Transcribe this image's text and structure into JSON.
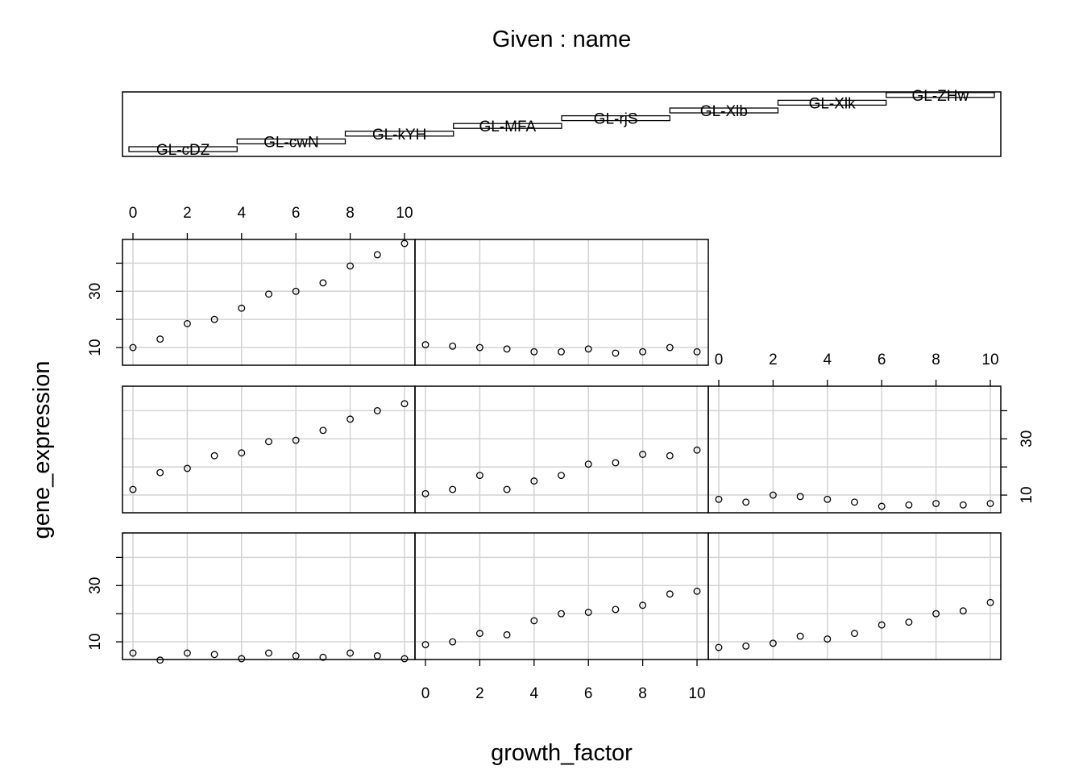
{
  "chart_data": {
    "type": "scatter",
    "title": "Given : name",
    "xlabel": "growth_factor",
    "ylabel": "gene_expression",
    "x_ticks": [
      0,
      2,
      4,
      6,
      8,
      10
    ],
    "y_ticks": [
      10,
      30
    ],
    "xlim": [
      0,
      10
    ],
    "ylim": [
      5,
      47
    ],
    "grid": true,
    "given_levels": [
      "GL-cDZ",
      "GL-cwN",
      "GL-kYH",
      "GL-MFA",
      "GL-rjS",
      "GL-Xlb",
      "GL-Xlk",
      "GL-ZHw"
    ],
    "panels": [
      {
        "given": "GL-cDZ",
        "x": [
          0,
          1,
          2,
          3,
          4,
          5,
          6,
          7,
          8,
          9,
          10
        ],
        "y": [
          6,
          3.5,
          6,
          5.5,
          4,
          6,
          5,
          4.5,
          6,
          5,
          4
        ]
      },
      {
        "given": "GL-cwN",
        "x": [
          0,
          1,
          2,
          3,
          4,
          5,
          6,
          7,
          8,
          9,
          10
        ],
        "y": [
          9,
          10,
          13,
          12.5,
          17.5,
          20,
          20.5,
          21.5,
          23,
          27,
          28
        ]
      },
      {
        "given": "GL-kYH",
        "x": [
          0,
          1,
          2,
          3,
          4,
          5,
          6,
          7,
          8,
          9,
          10
        ],
        "y": [
          8,
          8.5,
          9.5,
          12,
          11,
          13,
          16,
          17,
          20,
          21,
          24
        ]
      },
      {
        "given": "GL-MFA",
        "x": [
          0,
          1,
          2,
          3,
          4,
          5,
          6,
          7,
          8,
          9,
          10
        ],
        "y": [
          12,
          18,
          19.5,
          24,
          25,
          29,
          29.5,
          33,
          37,
          40,
          42.5
        ]
      },
      {
        "given": "GL-rjS",
        "x": [
          0,
          1,
          2,
          3,
          4,
          5,
          6,
          7,
          8,
          9,
          10
        ],
        "y": [
          10.5,
          12,
          17,
          12,
          15,
          17,
          21,
          21.5,
          24.5,
          24,
          26
        ]
      },
      {
        "given": "GL-Xlb",
        "x": [
          0,
          1,
          2,
          3,
          4,
          5,
          6,
          7,
          8,
          9,
          10
        ],
        "y": [
          8.5,
          7.5,
          10,
          9.5,
          8.5,
          7.5,
          6,
          6.5,
          7,
          6.5,
          7
        ]
      },
      {
        "given": "GL-Xlk",
        "x": [
          0,
          1,
          2,
          3,
          4,
          5,
          6,
          7,
          8,
          9,
          10
        ],
        "y": [
          10,
          13,
          18.5,
          20,
          24,
          29,
          30,
          33,
          39,
          43,
          47
        ]
      },
      {
        "given": "GL-ZHw",
        "x": [
          0,
          1,
          2,
          3,
          4,
          5,
          6,
          7,
          8,
          9,
          10
        ],
        "y": [
          11,
          10.5,
          10,
          9.5,
          8.5,
          8.5,
          9.5,
          8,
          8.5,
          10,
          8.5
        ]
      }
    ]
  }
}
